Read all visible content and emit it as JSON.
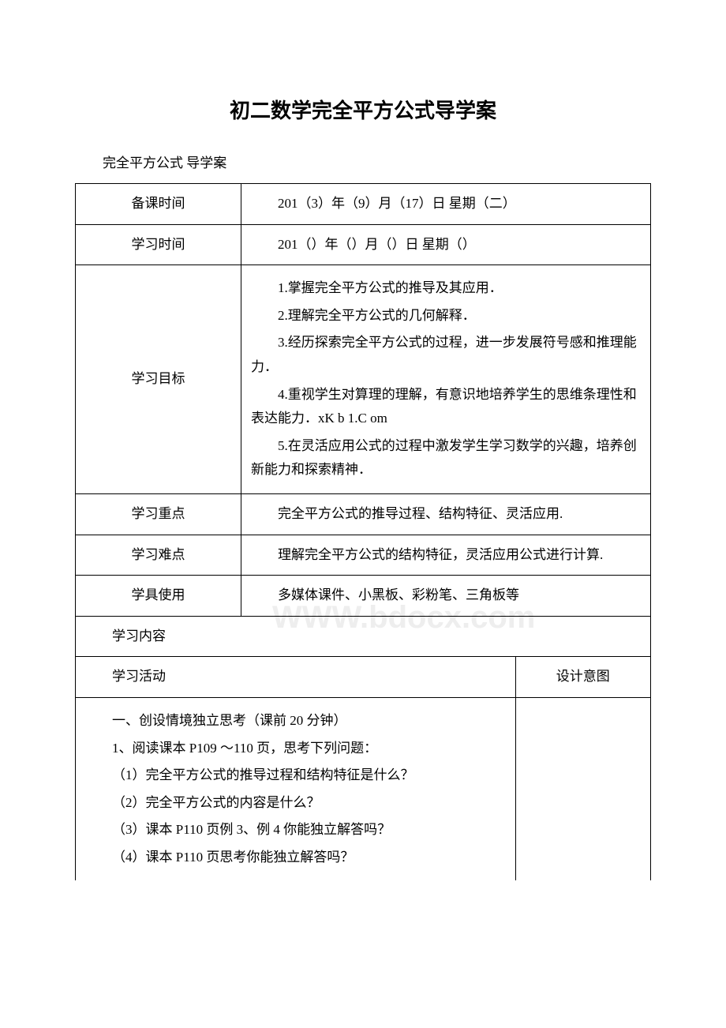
{
  "page": {
    "background_color": "#ffffff",
    "text_color": "#000000",
    "border_color": "#000000",
    "watermark_color": "#eeeeee"
  },
  "title": "初二数学完全平方公式导学案",
  "subtitle": "完全平方公式 导学案",
  "watermark": "WWW.bdocx.com",
  "table": {
    "rows": [
      {
        "label": "备课时间",
        "content": "201（3）年（9）月（17）日 星期（二）"
      },
      {
        "label": "学习时间",
        "content": "201（）年（）月（）日 星期（）"
      },
      {
        "label": "学习目标",
        "objectives": [
          "1.掌握完全平方公式的推导及其应用．",
          "2.理解完全平方公式的几何解释．",
          "3.经历探索完全平方公式的过程，进一步发展符号感和推理能力．",
          "4.重视学生对算理的理解，有意识地培养学生的思维条理性和表达能力．xK b 1.C om",
          "5.在灵活应用公式的过程中激发学生学习数学的兴趣，培养创新能力和探索精神．"
        ]
      },
      {
        "label": "学习重点",
        "content": "完全平方公式的推导过程、结构特征、灵活应用."
      },
      {
        "label": "学习难点",
        "content": "理解完全平方公式的结构特征，灵活应用公式进行计算."
      },
      {
        "label": "学具使用",
        "content": "多媒体课件、小黑板、彩粉笔、三角板等"
      }
    ],
    "section_header": "学习内容",
    "activity_header": "学习活动",
    "intent_header": "设计意图",
    "activities": [
      "一、创设情境独立思考（课前 20 分钟）",
      "1、阅读课本 P109 ～110 页，思考下列问题：",
      "（1）完全平方公式的推导过程和结构特征是什么？",
      "（2）完全平方公式的内容是什么？",
      "（3）课本 P110 页例 3、例 4 你能独立解答吗？",
      "（4）课本 P110 页思考你能独立解答吗？"
    ]
  }
}
